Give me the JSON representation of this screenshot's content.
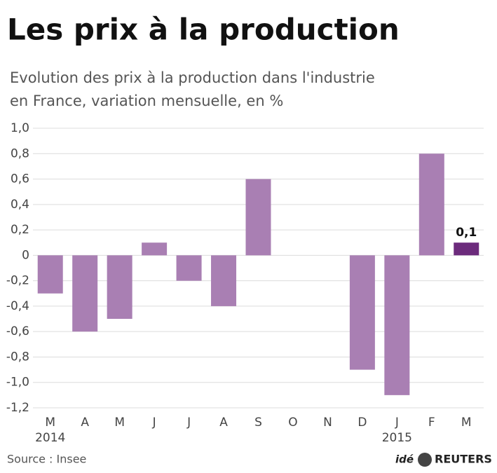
{
  "chart_data": {
    "type": "bar",
    "title": "Les prix à la production",
    "subtitle": [
      "Evolution des prix à la production dans l'industrie",
      "en France, variation mensuelle, en %"
    ],
    "categories": [
      "M",
      "A",
      "M",
      "J",
      "J",
      "A",
      "S",
      "O",
      "N",
      "D",
      "J",
      "F",
      "M"
    ],
    "year_labels": [
      "2014",
      null,
      null,
      null,
      null,
      null,
      null,
      null,
      null,
      null,
      "2015",
      null,
      null
    ],
    "values": [
      -0.3,
      -0.6,
      -0.5,
      0.1,
      -0.2,
      -0.4,
      0.6,
      0,
      0,
      -0.9,
      -1.1,
      0.8,
      0.1
    ],
    "value_labels": [
      null,
      null,
      null,
      null,
      null,
      null,
      null,
      null,
      null,
      null,
      null,
      null,
      "0,1"
    ],
    "colors": [
      "#a97fb3",
      "#a97fb3",
      "#a97fb3",
      "#a97fb3",
      "#a97fb3",
      "#a97fb3",
      "#a97fb3",
      "#a97fb3",
      "#a97fb3",
      "#a97fb3",
      "#a97fb3",
      "#a97fb3",
      "#6c2b7c"
    ],
    "ylim": [
      -1.2,
      1.0
    ],
    "yticks": [
      {
        "value": 1.0,
        "label": "1,0"
      },
      {
        "value": 0.8,
        "label": "0,8"
      },
      {
        "value": 0.6,
        "label": "0,6"
      },
      {
        "value": 0.4,
        "label": "0,4"
      },
      {
        "value": 0.2,
        "label": "0,2"
      },
      0,
      {
        "value": -0.2,
        "label": "-0,2"
      },
      {
        "value": -0.4,
        "label": "-0,4"
      },
      {
        "value": -0.6,
        "label": "-0,6"
      },
      {
        "value": -0.8,
        "label": "-0,8"
      },
      {
        "value": -1.0,
        "label": "-1,0"
      },
      {
        "value": -1.2,
        "label": "-1,2"
      }
    ],
    "grid": true,
    "source": "Source : Insee",
    "credit": [
      "idé",
      "REUTERS"
    ]
  }
}
